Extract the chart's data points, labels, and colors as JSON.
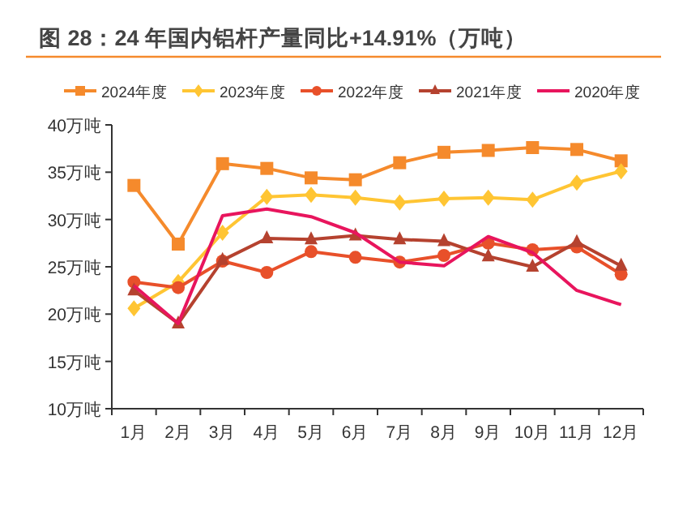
{
  "chart_data": {
    "type": "line",
    "title": "图 28：24 年国内铝杆产量同比+14.91%（万吨）",
    "categories": [
      "1月",
      "2月",
      "3月",
      "4月",
      "5月",
      "6月",
      "7月",
      "8月",
      "9月",
      "10月",
      "11月",
      "12月"
    ],
    "ylim": [
      10,
      40
    ],
    "yticks": [
      {
        "value": 10,
        "label": "10万吨"
      },
      {
        "value": 15,
        "label": "15万吨"
      },
      {
        "value": 20,
        "label": "20万吨"
      },
      {
        "value": 25,
        "label": "25万吨"
      },
      {
        "value": 30,
        "label": "30万吨"
      },
      {
        "value": 35,
        "label": "35万吨"
      },
      {
        "value": 40,
        "label": "40万吨"
      }
    ],
    "legend": "top",
    "grid": false,
    "series": [
      {
        "name": "2024年度",
        "color": "#f58a2c",
        "marker": "square",
        "values": [
          33.6,
          27.4,
          35.9,
          35.4,
          34.4,
          34.2,
          36.0,
          37.1,
          37.3,
          37.6,
          37.4,
          36.2
        ]
      },
      {
        "name": "2023年度",
        "color": "#ffc533",
        "marker": "diamond",
        "values": [
          20.6,
          23.4,
          28.6,
          32.4,
          32.6,
          32.3,
          31.8,
          32.2,
          32.3,
          32.1,
          33.9,
          35.1
        ]
      },
      {
        "name": "2022年度",
        "color": "#e8502a",
        "marker": "circle",
        "values": [
          23.4,
          22.8,
          25.6,
          24.4,
          26.6,
          26.0,
          25.5,
          26.2,
          27.5,
          26.8,
          27.1,
          24.2
        ]
      },
      {
        "name": "2021年度",
        "color": "#b5422f",
        "marker": "triangle",
        "values": [
          22.5,
          19.0,
          25.7,
          28.0,
          27.9,
          28.3,
          27.9,
          27.7,
          26.1,
          25.0,
          27.6,
          25.1
        ]
      },
      {
        "name": "2020年度",
        "color": "#e8155d",
        "marker": "none",
        "values": [
          23.0,
          19.0,
          30.4,
          31.1,
          30.3,
          28.6,
          25.5,
          25.1,
          28.2,
          26.5,
          22.5,
          21.0
        ]
      }
    ]
  }
}
